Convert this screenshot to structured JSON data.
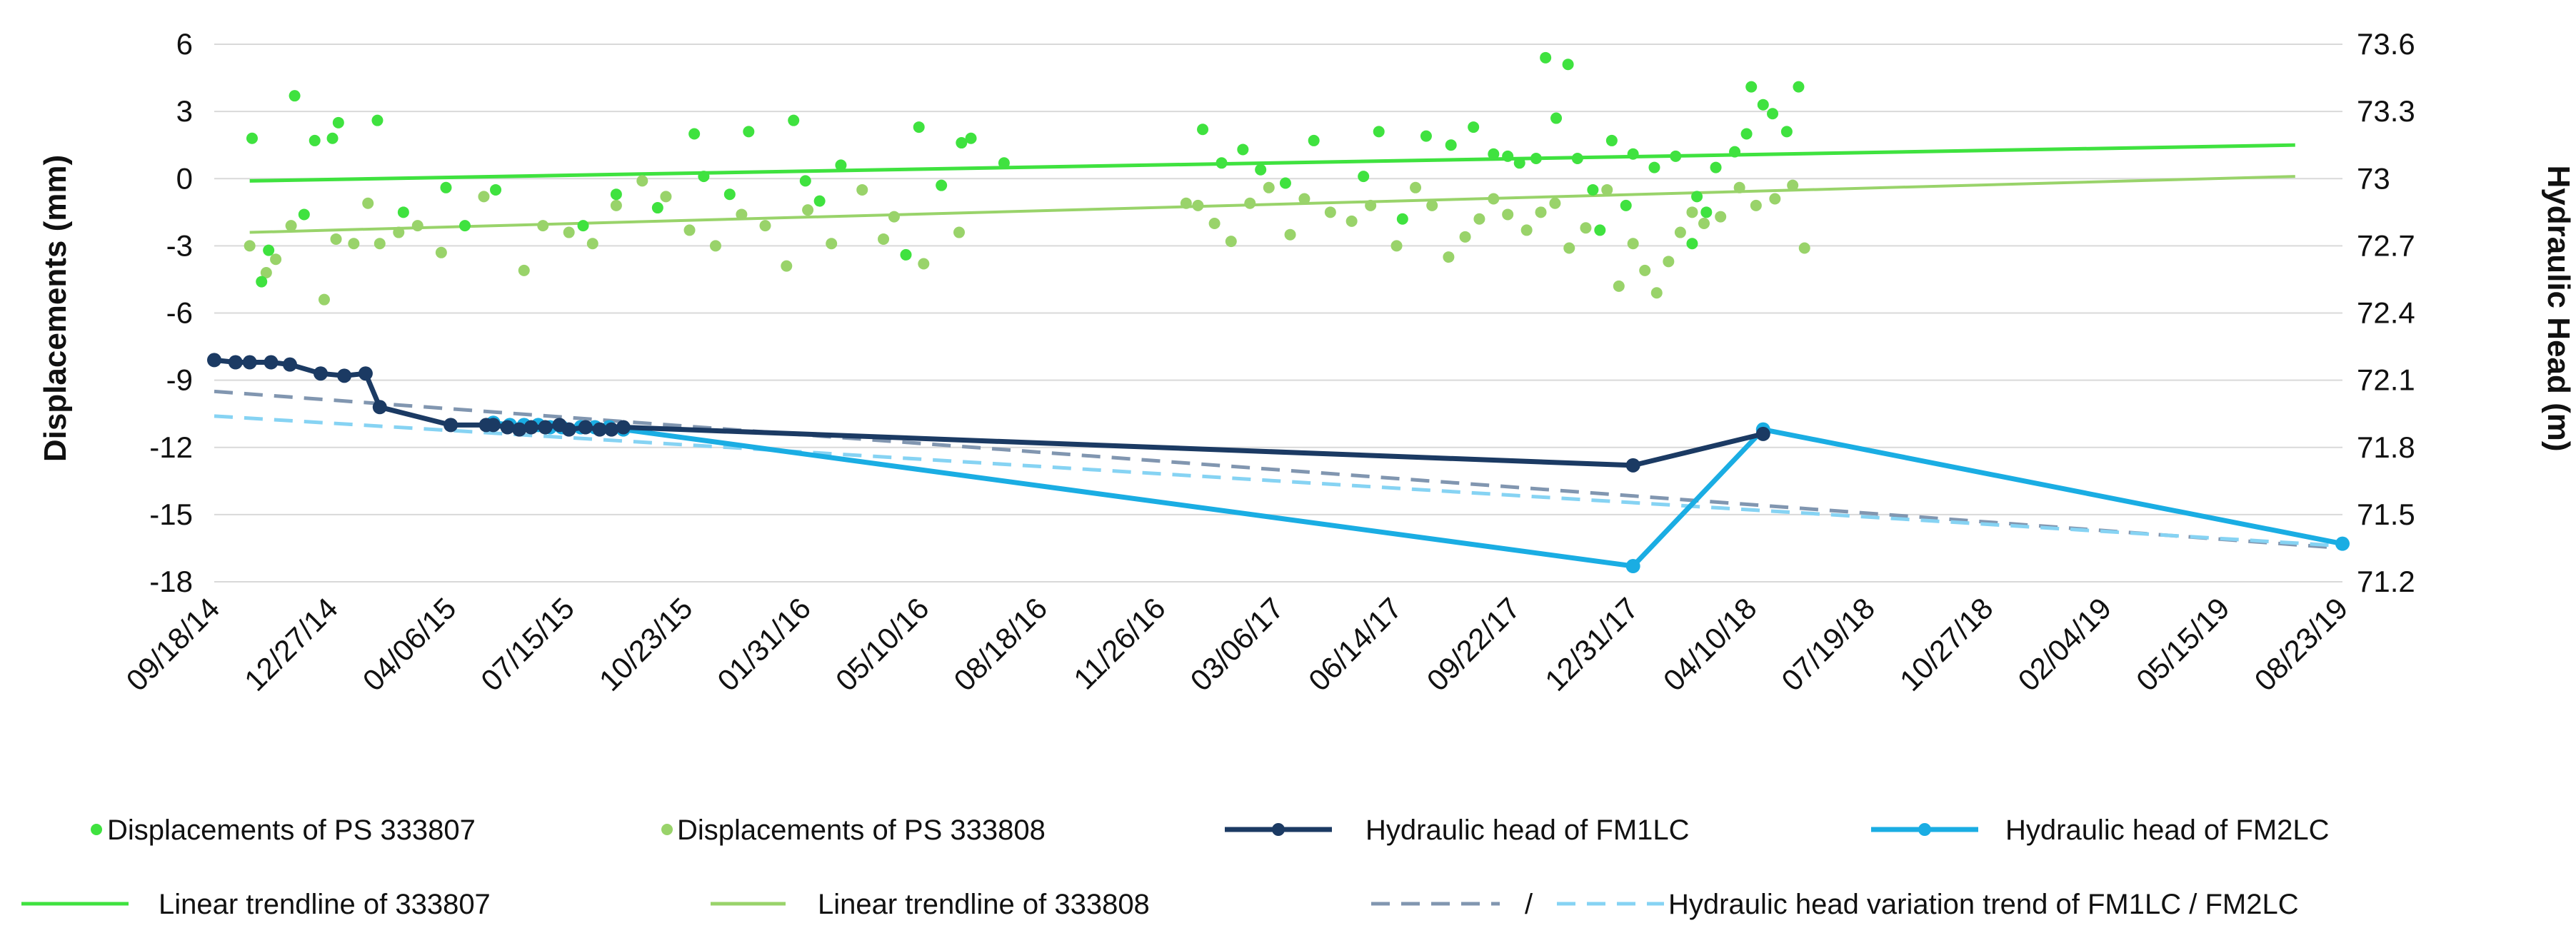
{
  "chart_data": {
    "type": "line",
    "title": "",
    "xlabel": "",
    "ylabel_left": "Displacements (mm)",
    "ylabel_right": "Hydraulic Head (m)",
    "x_ticks": [
      "09/18/14",
      "12/27/14",
      "04/06/15",
      "07/15/15",
      "10/23/15",
      "01/31/16",
      "05/10/16",
      "08/18/16",
      "11/26/16",
      "03/06/17",
      "06/14/17",
      "09/22/17",
      "12/31/17",
      "04/10/18",
      "07/19/18",
      "10/27/18",
      "02/04/19",
      "05/15/19",
      "08/23/19"
    ],
    "x_tick_days": [
      0,
      100,
      200,
      300,
      400,
      500,
      600,
      700,
      800,
      900,
      1000,
      1100,
      1200,
      1300,
      1400,
      1500,
      1600,
      1700,
      1800
    ],
    "left_axis": {
      "range": [
        -18,
        6
      ],
      "ticks": [
        "6",
        "3",
        "0",
        "-3",
        "-6",
        "-9",
        "-12",
        "-15",
        "-18"
      ]
    },
    "right_axis": {
      "range": [
        71.2,
        73.6
      ],
      "ticks": [
        "73.6",
        "73.3",
        "73",
        "72.7",
        "72.4",
        "72.1",
        "71.8",
        "71.5",
        "71.2"
      ]
    },
    "grid": "horizontal",
    "legend_position": "bottom",
    "colors": {
      "ps333807": "#3FE23F",
      "ps333808": "#99D36A",
      "fm1lc": "#1B3A63",
      "fm2lc": "#1AADE3",
      "trend_fm1lc": "#8196B0",
      "trend_fm2lc": "#86D3F3",
      "gridline": "#D9D9D9"
    },
    "series": [
      {
        "name": "Displacements of PS 333807",
        "kind": "scatter",
        "axis": "left",
        "x_days": [
          32,
          40,
          46,
          68,
          76,
          85,
          100,
          105,
          138,
          160,
          196,
          212,
          238,
          312,
          340,
          375,
          406,
          414,
          436,
          452,
          490,
          500,
          512,
          530,
          585,
          596,
          615,
          632,
          640,
          668,
          836,
          852,
          870,
          885,
          906,
          930,
          972,
          985,
          1005,
          1025,
          1046,
          1065,
          1082,
          1094,
          1104,
          1118,
          1135,
          1153,
          1166,
          1182,
          1200,
          1218,
          1236,
          1254,
          1270,
          1286,
          1296,
          1300,
          1310,
          1318,
          1330,
          1340,
          1126,
          1145,
          1172,
          1194,
          1250,
          1262
        ],
        "values": [
          1.8,
          -4.6,
          -3.2,
          3.7,
          -1.6,
          1.7,
          1.8,
          2.5,
          2.6,
          -1.5,
          -0.4,
          -2.1,
          -0.5,
          -2.1,
          -0.7,
          -1.3,
          2.0,
          0.1,
          -0.7,
          2.1,
          2.6,
          -0.1,
          -1.0,
          0.6,
          -3.4,
          2.3,
          -0.3,
          1.6,
          1.8,
          0.7,
          2.2,
          0.7,
          1.3,
          0.4,
          -0.2,
          1.7,
          0.1,
          2.1,
          -1.8,
          1.9,
          1.5,
          2.3,
          1.1,
          1.0,
          0.7,
          0.9,
          2.7,
          0.9,
          -0.5,
          1.7,
          1.1,
          0.5,
          1.0,
          -0.8,
          0.5,
          1.2,
          2.0,
          4.1,
          3.3,
          2.9,
          2.1,
          4.1,
          5.4,
          5.1,
          -2.3,
          -1.2,
          -2.9,
          -1.5
        ]
      },
      {
        "name": "Displacements of PS 333808",
        "kind": "scatter",
        "axis": "left",
        "x_days": [
          30,
          44,
          52,
          65,
          93,
          103,
          118,
          130,
          140,
          156,
          172,
          192,
          228,
          262,
          278,
          300,
          320,
          340,
          362,
          382,
          402,
          424,
          446,
          466,
          484,
          502,
          522,
          548,
          566,
          575,
          600,
          630,
          822,
          832,
          846,
          860,
          876,
          892,
          910,
          922,
          944,
          962,
          978,
          1000,
          1016,
          1030,
          1044,
          1058,
          1070,
          1082,
          1094,
          1110,
          1122,
          1134,
          1146,
          1160,
          1178,
          1188,
          1200,
          1210,
          1220,
          1230,
          1240,
          1250,
          1260,
          1274,
          1290,
          1304,
          1320,
          1335,
          1345
        ],
        "values": [
          -3.0,
          -4.2,
          -3.6,
          -2.1,
          -5.4,
          -2.7,
          -2.9,
          -1.1,
          -2.9,
          -2.4,
          -2.1,
          -3.3,
          -0.8,
          -4.1,
          -2.1,
          -2.4,
          -2.9,
          -1.2,
          -0.1,
          -0.8,
          -2.3,
          -3.0,
          -1.6,
          -2.1,
          -3.9,
          -1.4,
          -2.9,
          -0.5,
          -2.7,
          -1.7,
          -3.8,
          -2.4,
          -1.1,
          -1.2,
          -2.0,
          -2.8,
          -1.1,
          -0.4,
          -2.5,
          -0.9,
          -1.5,
          -1.9,
          -1.2,
          -3.0,
          -0.4,
          -1.2,
          -3.5,
          -2.6,
          -1.8,
          -0.9,
          -1.6,
          -2.3,
          -1.5,
          -1.1,
          -3.1,
          -2.2,
          -0.5,
          -4.8,
          -2.9,
          -4.1,
          -5.1,
          -3.7,
          -2.4,
          -1.5,
          -2.0,
          -1.7,
          -0.4,
          -1.2,
          -0.9,
          -0.3,
          -3.1
        ]
      },
      {
        "name": "Hydraulic head of FM1LC",
        "kind": "line-markers",
        "axis": "right",
        "x_days": [
          0,
          18,
          30,
          48,
          64,
          90,
          110,
          128,
          140,
          200,
          230,
          236,
          248,
          258,
          268,
          280,
          292,
          300,
          314,
          326,
          336,
          346,
          1200,
          1310
        ],
        "values": [
          72.19,
          72.18,
          72.18,
          72.18,
          72.17,
          72.13,
          72.12,
          72.13,
          71.98,
          71.9,
          71.9,
          71.9,
          71.89,
          71.88,
          71.89,
          71.89,
          71.9,
          71.88,
          71.89,
          71.88,
          71.88,
          71.89,
          71.72,
          71.86
        ]
      },
      {
        "name": "Hydraulic head of FM2LC",
        "kind": "line-markers",
        "axis": "right",
        "x_days": [
          236,
          250,
          262,
          274,
          284,
          294,
          310,
          322,
          334,
          346,
          1200,
          1310,
          1800
        ],
        "values": [
          71.91,
          71.9,
          71.9,
          71.9,
          71.89,
          71.89,
          71.89,
          71.89,
          71.89,
          71.88,
          71.27,
          71.88,
          71.37
        ]
      }
    ],
    "trendlines": [
      {
        "name": "Linear trendline of 333807",
        "axis": "left",
        "x_days": [
          30,
          1760
        ],
        "values": [
          -0.1,
          1.5
        ]
      },
      {
        "name": "Linear trendline of 333808",
        "axis": "left",
        "x_days": [
          30,
          1760
        ],
        "values": [
          -2.4,
          0.1
        ]
      },
      {
        "name": "Hydraulic head variation trend of FM1LC",
        "axis": "right",
        "x_days": [
          0,
          1800
        ],
        "values": [
          72.05,
          71.35
        ]
      },
      {
        "name": "Hydraulic head variation trend of FM2LC",
        "axis": "right",
        "x_days": [
          0,
          1800
        ],
        "values": [
          71.94,
          71.36
        ]
      }
    ],
    "legend": {
      "row1": [
        "Displacements of PS 333807",
        "Displacements of PS 333808",
        "Hydraulic head of FM1LC",
        "Hydraulic head of FM2LC"
      ],
      "row2": [
        "Linear trendline of 333807",
        "Linear trendline of 333808",
        "/",
        "Hydraulic head variation trend of FM1LC / FM2LC"
      ]
    }
  }
}
